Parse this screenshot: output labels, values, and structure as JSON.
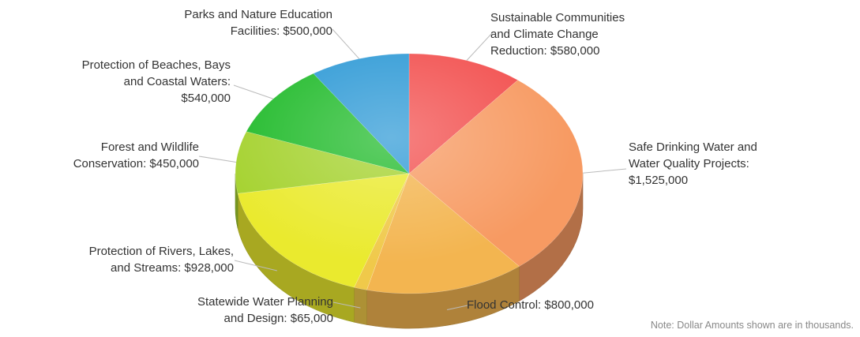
{
  "chart_data": {
    "type": "pie",
    "title": "",
    "unit": "$",
    "slices": [
      {
        "label": "Sustainable Communities\nand Climate Change\nReduction: $580,000",
        "name": "Sustainable Communities and Climate Change Reduction",
        "value": 580000,
        "color": "#f2504f"
      },
      {
        "label": "Safe Drinking Water and\nWater Quality Projects:\n$1,525,000",
        "name": "Safe Drinking Water and Water Quality Projects",
        "value": 1525000,
        "color": "#f79a62"
      },
      {
        "label": "Flood Control: $800,000",
        "name": "Flood Control",
        "value": 800000,
        "color": "#f3b550"
      },
      {
        "label": "Statewide Water Planning\nand Design: $65,000",
        "name": "Statewide Water Planning and Design",
        "value": 65000,
        "color": "#f0c94a"
      },
      {
        "label": "Protection of Rivers, Lakes,\nand Streams: $928,000",
        "name": "Protection of Rivers, Lakes, and Streams",
        "value": 928000,
        "color": "#eaea2e"
      },
      {
        "label": "Forest and Wildlife\nConservation: $450,000",
        "name": "Forest and Wildlife Conservation",
        "value": 450000,
        "color": "#a5d22f"
      },
      {
        "label": "Protection of Beaches, Bays\nand Coastal Waters:\n$540,000",
        "name": "Protection of Beaches, Bays and Coastal Waters",
        "value": 540000,
        "color": "#22bb2c"
      },
      {
        "label": "Parks and Nature Education\nFacilities: $500,000",
        "name": "Parks and Nature Education Facilities",
        "value": 500000,
        "color": "#2f9ad6"
      }
    ],
    "legend": "none",
    "style": "3d-pie"
  },
  "note": "Note: Dollar Amounts shown are in thousands."
}
